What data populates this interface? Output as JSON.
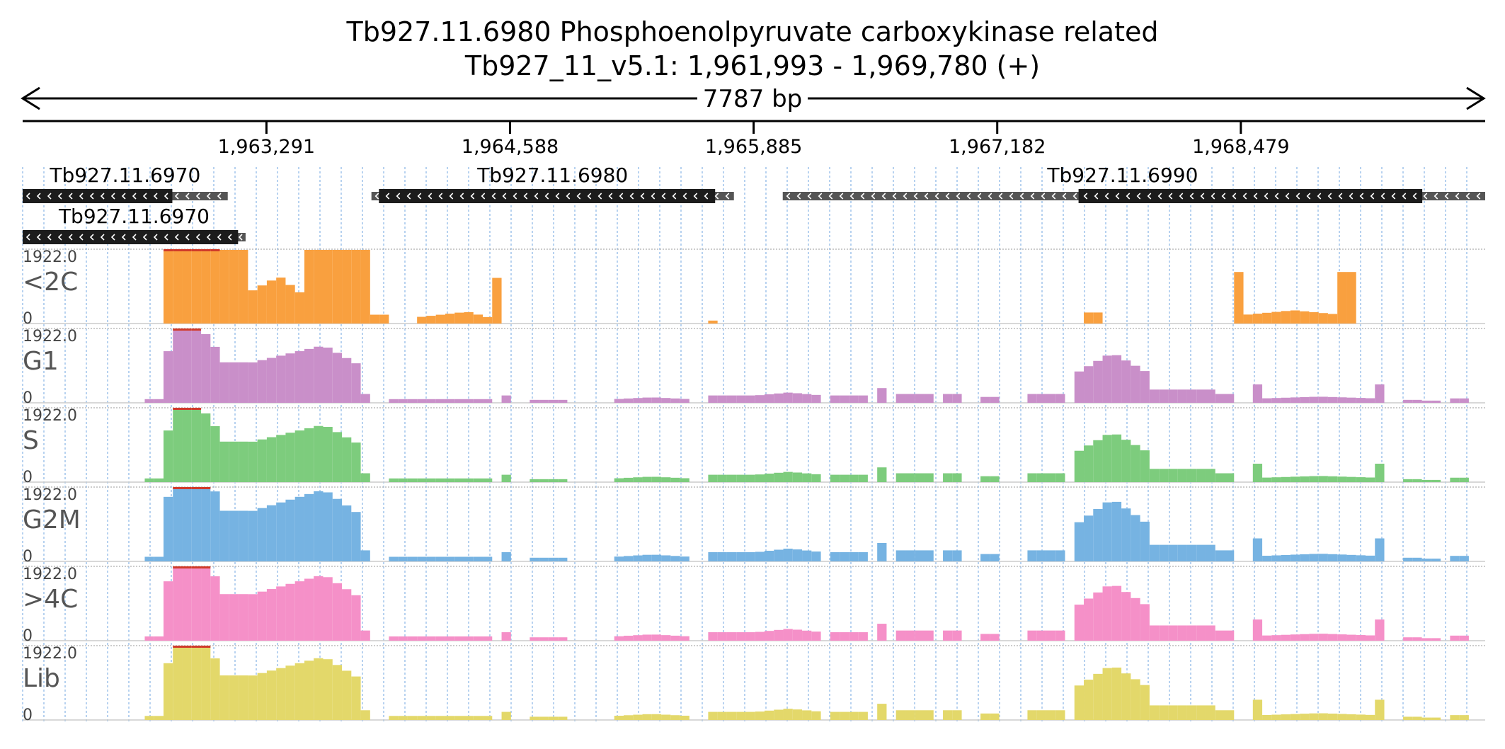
{
  "header": {
    "title_line1": "Tb927.11.6980  Phosphoenolpyruvate carboxykinase  related",
    "title_line2": "Tb927_11_v5.1: 1,961,993 - 1,969,780 (+)",
    "span_label": "7787 bp"
  },
  "region": {
    "chrom": "Tb927_11_v5.1",
    "start": 1961993,
    "end": 1969780,
    "strand": "+"
  },
  "ruler": {
    "ticks": [
      {
        "pos": 1963291,
        "label": "1,963,291"
      },
      {
        "pos": 1964588,
        "label": "1,964,588"
      },
      {
        "pos": 1965885,
        "label": "1,965,885"
      },
      {
        "pos": 1967182,
        "label": "1,967,182"
      },
      {
        "pos": 1968479,
        "label": "1,968,479"
      }
    ]
  },
  "genes": [
    {
      "id": "Tb927.11.6970",
      "row": 0,
      "start": 1961993,
      "end": 1963085,
      "cds_start": 1961993,
      "cds_end": 1962790,
      "strand": "-"
    },
    {
      "id": "Tb927.11.6970",
      "row": 1,
      "start": 1961993,
      "end": 1963180,
      "cds_start": 1961993,
      "cds_end": 1963140,
      "strand": "-"
    },
    {
      "id": "Tb927.11.6980",
      "row": 0,
      "start": 1963850,
      "end": 1965780,
      "cds_start": 1963890,
      "cds_end": 1965680,
      "strand": "-"
    },
    {
      "id": "Tb927.11.6990",
      "row": 0,
      "start": 1966040,
      "end": 1969780,
      "cds_start": 1967615,
      "cds_end": 1969445,
      "strand": "-"
    }
  ],
  "chart_data": {
    "type": "area",
    "x_range": [
      1961993,
      1969780
    ],
    "ylim": [
      0,
      1922.0
    ],
    "ymax_label": "1922.0",
    "ymin_label": "0",
    "bin_size": 50,
    "bin_start": 1961993,
    "segments": [
      {
        "start": 1962650,
        "end": 1962760,
        "level": 5
      },
      {
        "start": 1962760,
        "end": 1963050,
        "level": 65,
        "bump": 1.0,
        "peak": 0.35
      },
      {
        "start": 1963060,
        "end": 1963170,
        "level": 55
      },
      {
        "start": 1963170,
        "end": 1963780,
        "level": 52,
        "bump": 0.5,
        "peak": 0.7
      },
      {
        "start": 1963790,
        "end": 1963850,
        "level": 12
      },
      {
        "start": 1963950,
        "end": 1964500,
        "level": 5
      },
      {
        "start": 1964520,
        "end": 1964580,
        "level": 10
      },
      {
        "start": 1964700,
        "end": 1964900,
        "level": 4
      },
      {
        "start": 1965150,
        "end": 1965540,
        "level": 5,
        "bump": 0.5,
        "peak": 0.5
      },
      {
        "start": 1965620,
        "end": 1965880,
        "level": 10
      },
      {
        "start": 1965900,
        "end": 1966250,
        "level": 10,
        "bump": 0.4,
        "peak": 0.5
      },
      {
        "start": 1966270,
        "end": 1966500,
        "level": 10
      },
      {
        "start": 1966520,
        "end": 1966600,
        "level": 20
      },
      {
        "start": 1966650,
        "end": 1966850,
        "level": 12
      },
      {
        "start": 1966880,
        "end": 1967000,
        "level": 12
      },
      {
        "start": 1967100,
        "end": 1967200,
        "level": 8
      },
      {
        "start": 1967360,
        "end": 1967560,
        "level": 12
      },
      {
        "start": 1967600,
        "end": 1967990,
        "level": 40,
        "bump": 0.7,
        "peak": 0.5
      },
      {
        "start": 1967990,
        "end": 1968330,
        "level": 18
      },
      {
        "start": 1968360,
        "end": 1968420,
        "level": 12
      },
      {
        "start": 1968550,
        "end": 1968600,
        "level": 25
      },
      {
        "start": 1968600,
        "end": 1969200,
        "level": 6,
        "bump": 0.4,
        "peak": 0.5
      },
      {
        "start": 1969200,
        "end": 1969260,
        "level": 25
      },
      {
        "start": 1969340,
        "end": 1969420,
        "level": 4
      },
      {
        "start": 1969430,
        "end": 1969560,
        "level": 3
      },
      {
        "start": 1969600,
        "end": 1969700,
        "level": 6
      }
    ],
    "series": [
      {
        "name": "<2C",
        "color": "#f9a03f",
        "scale": 0.85,
        "overrides": [
          {
            "start": 1962650,
            "end": 1962760,
            "level": 0
          },
          {
            "start": 1962760,
            "end": 1963050,
            "level": 100,
            "bump": 1.0,
            "peak": 0.4
          },
          {
            "start": 1963060,
            "end": 1963180,
            "level": 100
          },
          {
            "start": 1963180,
            "end": 1963480,
            "level": 40,
            "bump": 0.6,
            "peak": 0.6
          },
          {
            "start": 1963480,
            "end": 1963850,
            "level": 100
          },
          {
            "start": 1963850,
            "end": 1963950,
            "level": 12
          },
          {
            "start": 1964080,
            "end": 1964480,
            "level": 8,
            "bump": 1.0,
            "peak": 0.7
          },
          {
            "start": 1964480,
            "end": 1964560,
            "level": 62
          },
          {
            "start": 1965620,
            "end": 1965680,
            "level": 4
          },
          {
            "start": 1967620,
            "end": 1967760,
            "level": 15
          },
          {
            "start": 1968450,
            "end": 1968510,
            "level": 70
          },
          {
            "start": 1968510,
            "end": 1969010,
            "level": 12,
            "bump": 0.5,
            "peak": 0.5
          },
          {
            "start": 1969010,
            "end": 1969070,
            "level": 70
          }
        ],
        "disabled_ranges": [
          [
            1963950,
            1964080
          ],
          [
            1964560,
            1965620
          ],
          [
            1965680,
            1967620
          ],
          [
            1967760,
            1968450
          ],
          [
            1969070,
            1969780
          ]
        ]
      },
      {
        "name": "G1",
        "color": "#c98fc9",
        "scale": 1.0,
        "overrides": [],
        "disabled_ranges": []
      },
      {
        "name": "S",
        "color": "#7dcc7d",
        "scale": 1.0,
        "overrides": [],
        "disabled_ranges": []
      },
      {
        "name": "G2M",
        "color": "#76b3e2",
        "scale": 1.25,
        "overrides": [],
        "disabled_ranges": []
      },
      {
        "name": ">4C",
        "color": "#f590c8",
        "scale": 1.15,
        "overrides": [],
        "disabled_ranges": []
      },
      {
        "name": "Lib",
        "color": "#e3d86a",
        "scale": 1.1,
        "overrides": [],
        "disabled_ranges": []
      }
    ]
  },
  "colors": {
    "gene_feature": "#1c1c1c",
    "gene_utr": "#555555",
    "grid_line": "#9fc4ec",
    "text": "#000000",
    "track_label": "#555555",
    "clip_marker": "#d03a2a"
  }
}
